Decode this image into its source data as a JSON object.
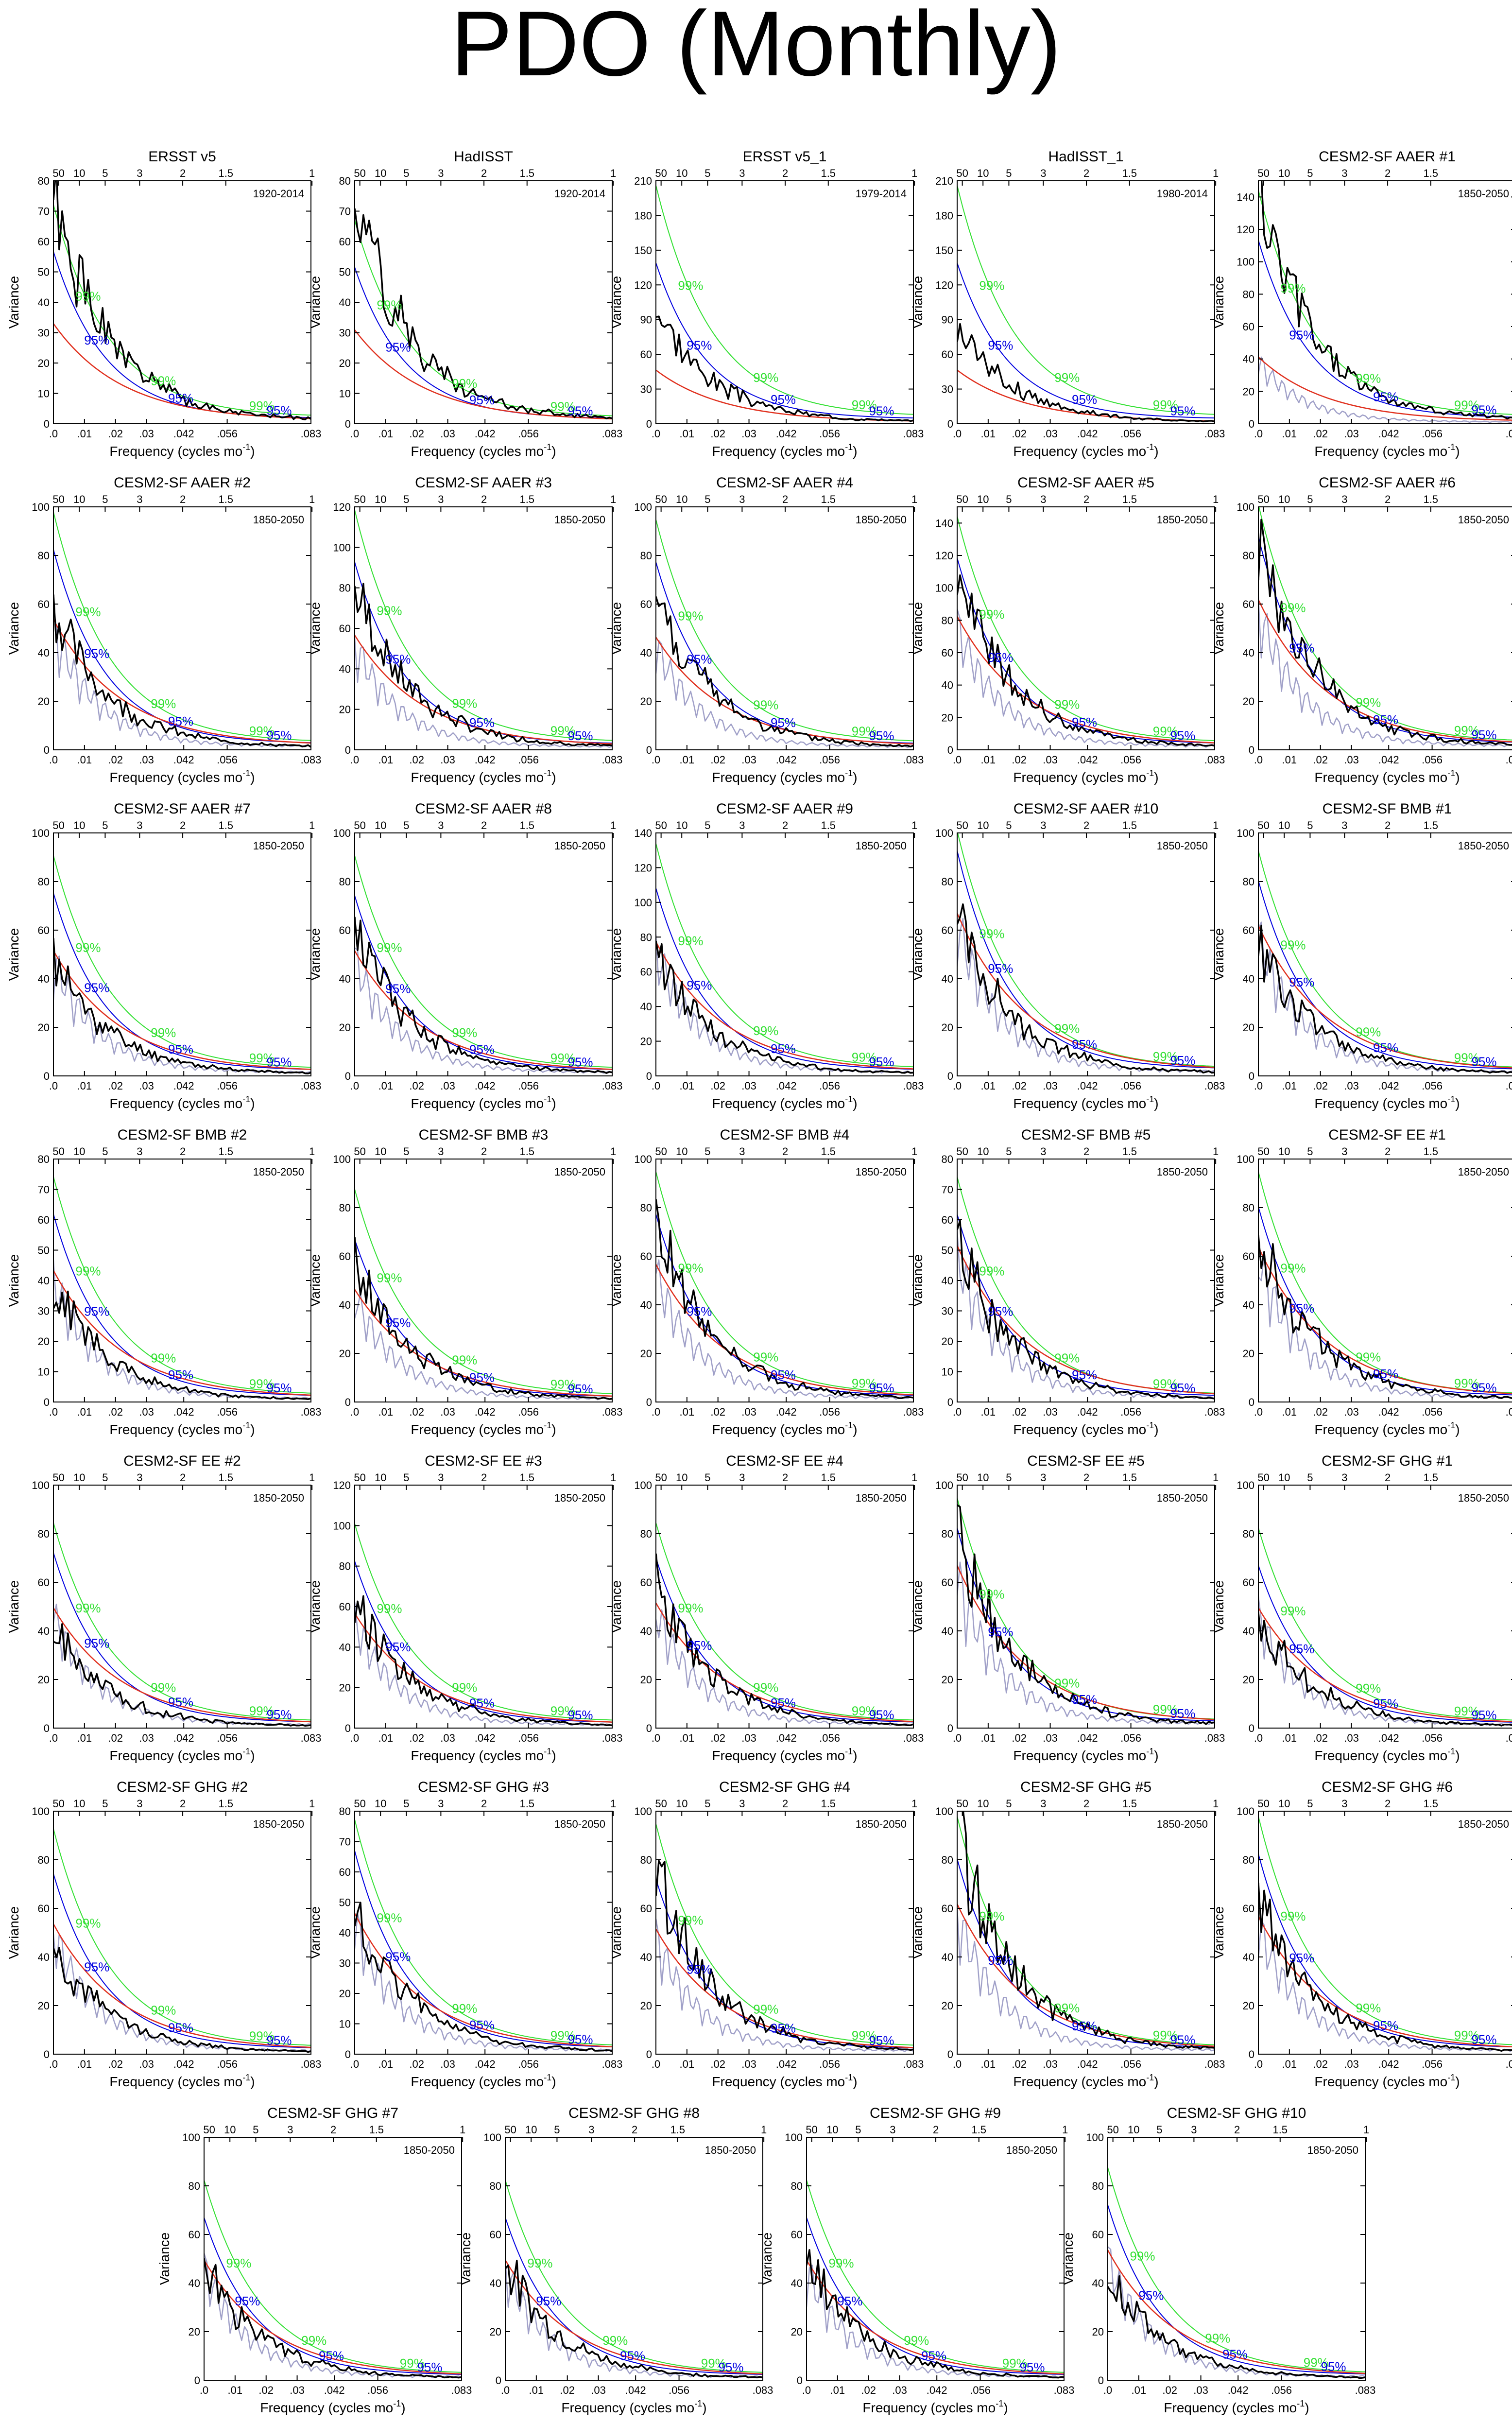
{
  "title": "PDO (Monthly)",
  "colors": {
    "data": "#000000",
    "red_noise": "#e0301e",
    "sig95": "#0000e0",
    "sig99": "#33e033",
    "ensemble": "#a0a0c8"
  },
  "labels": {
    "ylabel": "Variance",
    "xlabel": "Frequency (cycles mo",
    "xlabel_sup": "-1",
    "xlabel_end": ")",
    "sig95": "95%",
    "sig99": "99%"
  },
  "axes": {
    "xlim": [
      0,
      0.083
    ],
    "bottom_ticks": [
      {
        "v": 0,
        "label": ".0"
      },
      {
        "v": 0.01,
        "label": ".01"
      },
      {
        "v": 0.02,
        "label": ".02"
      },
      {
        "v": 0.03,
        "label": ".03"
      },
      {
        "v": 0.042,
        "label": ".042"
      },
      {
        "v": 0.056,
        "label": ".056"
      },
      {
        "v": 0.083,
        "label": ".083"
      }
    ],
    "top_ticks": [
      {
        "v": 0.001667,
        "label": "50"
      },
      {
        "v": 0.008333,
        "label": "10"
      },
      {
        "v": 0.016667,
        "label": "5"
      },
      {
        "v": 0.027778,
        "label": "3"
      },
      {
        "v": 0.041667,
        "label": "2"
      },
      {
        "v": 0.055556,
        "label": "1.5"
      },
      {
        "v": 0.083333,
        "label": "1"
      }
    ]
  },
  "chart_data": [
    {
      "type": "line",
      "title": "ERSST v5",
      "period": "1920-2014",
      "ylim": [
        0,
        80
      ],
      "ensemble": false,
      "peak": 72,
      "red": 32,
      "s95": 55,
      "s99": 70,
      "seed": 1
    },
    {
      "type": "line",
      "title": "HadISST",
      "period": "1920-2014",
      "ylim": [
        0,
        80
      ],
      "ensemble": false,
      "peak": 76,
      "red": 30,
      "s95": 50,
      "s99": 65,
      "seed": 2
    },
    {
      "type": "line",
      "title": "ERSST v5_1",
      "period": "1979-2014",
      "ylim": [
        0,
        210
      ],
      "ensemble": false,
      "peak": 100,
      "red": 45,
      "s95": 135,
      "s99": 200,
      "seed": 3
    },
    {
      "type": "line",
      "title": "HadISST_1",
      "period": "1980-2014",
      "ylim": [
        0,
        210
      ],
      "ensemble": false,
      "peak": 85,
      "red": 45,
      "s95": 135,
      "s99": 200,
      "seed": 4
    },
    {
      "type": "line",
      "title": "CESM2-SF AAER #1",
      "period": "1850-2050",
      "ylim": [
        0,
        150
      ],
      "ensemble": true,
      "peak": 140,
      "red": 40,
      "s95": 110,
      "s99": 140,
      "seed": 5
    },
    {
      "type": "line",
      "title": "CESM2-SF AAER #2",
      "period": "1850-2050",
      "ylim": [
        0,
        100
      ],
      "ensemble": true,
      "peak": 58,
      "red": 52,
      "s95": 80,
      "s99": 95,
      "seed": 6
    },
    {
      "type": "line",
      "title": "CESM2-SF AAER #3",
      "period": "1850-2050",
      "ylim": [
        0,
        120
      ],
      "ensemble": true,
      "peak": 80,
      "red": 55,
      "s95": 90,
      "s99": 115,
      "seed": 7
    },
    {
      "type": "line",
      "title": "CESM2-SF AAER #4",
      "period": "1850-2050",
      "ylim": [
        0,
        100
      ],
      "ensemble": true,
      "peak": 63,
      "red": 45,
      "s95": 75,
      "s99": 92,
      "seed": 8
    },
    {
      "type": "line",
      "title": "CESM2-SF AAER #5",
      "period": "1850-2050",
      "ylim": [
        0,
        150
      ],
      "ensemble": true,
      "peak": 105,
      "red": 80,
      "s95": 115,
      "s99": 140,
      "seed": 9
    },
    {
      "type": "line",
      "title": "CESM2-SF AAER #6",
      "period": "1850-2050",
      "ylim": [
        0,
        100
      ],
      "ensemble": true,
      "peak": 85,
      "red": 60,
      "s95": 85,
      "s99": 98,
      "seed": 10
    },
    {
      "type": "line",
      "title": "CESM2-SF AAER #7",
      "period": "1850-2050",
      "ylim": [
        0,
        100
      ],
      "ensemble": true,
      "peak": 48,
      "red": 50,
      "s95": 73,
      "s99": 88,
      "seed": 11
    },
    {
      "type": "line",
      "title": "CESM2-SF AAER #8",
      "period": "1850-2050",
      "ylim": [
        0,
        100
      ],
      "ensemble": true,
      "peak": 60,
      "red": 50,
      "s95": 72,
      "s99": 88,
      "seed": 12
    },
    {
      "type": "line",
      "title": "CESM2-SF AAER #9",
      "period": "1850-2050",
      "ylim": [
        0,
        140
      ],
      "ensemble": true,
      "peak": 72,
      "red": 75,
      "s95": 105,
      "s99": 130,
      "seed": 13
    },
    {
      "type": "line",
      "title": "CESM2-SF AAER #10",
      "period": "1850-2050",
      "ylim": [
        0,
        100
      ],
      "ensemble": true,
      "peak": 63,
      "red": 65,
      "s95": 90,
      "s99": 98,
      "seed": 14
    },
    {
      "type": "line",
      "title": "CESM2-SF BMB #1",
      "period": "1850-2050",
      "ylim": [
        0,
        100
      ],
      "ensemble": true,
      "peak": 55,
      "red": 60,
      "s95": 78,
      "s99": 90,
      "seed": 15
    },
    {
      "type": "line",
      "title": "CESM2-SF BMB #2",
      "period": "1850-2050",
      "ylim": [
        0,
        80
      ],
      "ensemble": true,
      "peak": 38,
      "red": 42,
      "s95": 60,
      "s99": 72,
      "seed": 16
    },
    {
      "type": "line",
      "title": "CESM2-SF BMB #3",
      "period": "1850-2050",
      "ylim": [
        0,
        100
      ],
      "ensemble": true,
      "peak": 58,
      "red": 45,
      "s95": 65,
      "s99": 85,
      "seed": 17
    },
    {
      "type": "line",
      "title": "CESM2-SF BMB #4",
      "period": "1850-2050",
      "ylim": [
        0,
        100
      ],
      "ensemble": true,
      "peak": 72,
      "red": 55,
      "s95": 75,
      "s99": 92,
      "seed": 18
    },
    {
      "type": "line",
      "title": "CESM2-SF BMB #5",
      "period": "1850-2050",
      "ylim": [
        0,
        80
      ],
      "ensemble": true,
      "peak": 53,
      "red": 50,
      "s95": 60,
      "s99": 72,
      "seed": 19
    },
    {
      "type": "line",
      "title": "CESM2-SF EE #1",
      "period": "1850-2050",
      "ylim": [
        0,
        100
      ],
      "ensemble": true,
      "peak": 70,
      "red": 62,
      "s95": 78,
      "s99": 92,
      "seed": 20
    },
    {
      "type": "line",
      "title": "CESM2-SF EE #2",
      "period": "1850-2050",
      "ylim": [
        0,
        100
      ],
      "ensemble": true,
      "peak": 40,
      "red": 48,
      "s95": 70,
      "s99": 82,
      "seed": 21
    },
    {
      "type": "line",
      "title": "CESM2-SF EE #3",
      "period": "1850-2050",
      "ylim": [
        0,
        120
      ],
      "ensemble": true,
      "peak": 65,
      "red": 55,
      "s95": 80,
      "s99": 98,
      "seed": 22
    },
    {
      "type": "line",
      "title": "CESM2-SF EE #4",
      "period": "1850-2050",
      "ylim": [
        0,
        100
      ],
      "ensemble": true,
      "peak": 58,
      "red": 50,
      "s95": 68,
      "s99": 82,
      "seed": 23
    },
    {
      "type": "line",
      "title": "CESM2-SF EE #5",
      "period": "1850-2050",
      "ylim": [
        0,
        100
      ],
      "ensemble": true,
      "peak": 80,
      "red": 65,
      "s95": 80,
      "s99": 92,
      "seed": 24
    },
    {
      "type": "line",
      "title": "CESM2-SF GHG #1",
      "period": "1850-2050",
      "ylim": [
        0,
        100
      ],
      "ensemble": true,
      "peak": 45,
      "red": 48,
      "s95": 65,
      "s99": 80,
      "seed": 25
    },
    {
      "type": "line",
      "title": "CESM2-SF GHG #2",
      "period": "1850-2050",
      "ylim": [
        0,
        100
      ],
      "ensemble": true,
      "peak": 45,
      "red": 52,
      "s95": 72,
      "s99": 90,
      "seed": 26
    },
    {
      "type": "line",
      "title": "CESM2-SF GHG #3",
      "period": "1850-2050",
      "ylim": [
        0,
        80
      ],
      "ensemble": true,
      "peak": 48,
      "red": 45,
      "s95": 65,
      "s99": 75,
      "seed": 27
    },
    {
      "type": "line",
      "title": "CESM2-SF GHG #4",
      "period": "1850-2050",
      "ylim": [
        0,
        100
      ],
      "ensemble": true,
      "peak": 75,
      "red": 50,
      "s95": 70,
      "s99": 92,
      "seed": 28
    },
    {
      "type": "line",
      "title": "CESM2-SF GHG #5",
      "period": "1850-2050",
      "ylim": [
        0,
        100
      ],
      "ensemble": true,
      "peak": 92,
      "red": 60,
      "s95": 78,
      "s99": 95,
      "seed": 29
    },
    {
      "type": "line",
      "title": "CESM2-SF GHG #6",
      "period": "1850-2050",
      "ylim": [
        0,
        100
      ],
      "ensemble": true,
      "peak": 62,
      "red": 55,
      "s95": 80,
      "s99": 95,
      "seed": 30
    },
    {
      "type": "line",
      "title": "CESM2-SF GHG #7",
      "period": "1850-2050",
      "ylim": [
        0,
        100
      ],
      "ensemble": true,
      "peak": 48,
      "red": 48,
      "s95": 65,
      "s99": 80,
      "seed": 31
    },
    {
      "type": "line",
      "title": "CESM2-SF GHG #8",
      "period": "1850-2050",
      "ylim": [
        0,
        100
      ],
      "ensemble": true,
      "peak": 48,
      "red": 48,
      "s95": 65,
      "s99": 80,
      "seed": 32
    },
    {
      "type": "line",
      "title": "CESM2-SF GHG #9",
      "period": "1850-2050",
      "ylim": [
        0,
        100
      ],
      "ensemble": true,
      "peak": 50,
      "red": 48,
      "s95": 65,
      "s99": 80,
      "seed": 33
    },
    {
      "type": "line",
      "title": "CESM2-SF GHG #10",
      "period": "1850-2050",
      "ylim": [
        0,
        100
      ],
      "ensemble": true,
      "peak": 45,
      "red": 52,
      "s95": 70,
      "s99": 85,
      "seed": 34
    }
  ]
}
